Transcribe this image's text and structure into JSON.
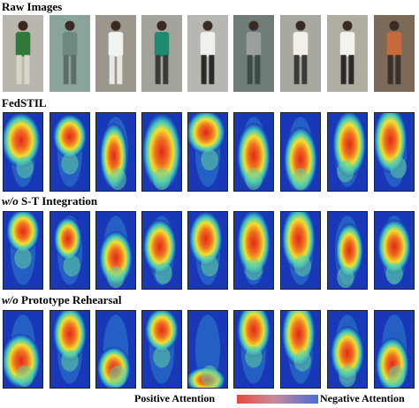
{
  "sections": [
    {
      "title_pre": "",
      "title_italic": "",
      "title_rest": "Raw Images",
      "kind": "raw"
    },
    {
      "title_pre": "",
      "title_italic": "",
      "title_rest": "FedSTIL",
      "kind": "heat"
    },
    {
      "title_pre": "",
      "title_italic": "w/o",
      "title_rest": " S-T Integration",
      "kind": "heat"
    },
    {
      "title_pre": "",
      "title_italic": "w/o",
      "title_rest": " Prototype Rehearsal",
      "kind": "heat"
    }
  ],
  "legend": {
    "positive_label": "Positive Attention",
    "negative_label": "Negative Attention"
  },
  "colors": {
    "hot": "#e02818",
    "warm": "#f0e030",
    "mid": "#40c8c0",
    "cold": "#1838b8"
  },
  "person_count": 9
}
